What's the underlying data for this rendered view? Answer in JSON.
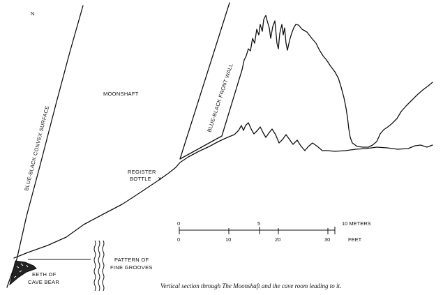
{
  "labels": {
    "north_marker": "N",
    "moonshaft": "MOONSHAFT",
    "convex_surface": "BLUE-BLACK CONVEX SURFACE",
    "front_wall": "BLUE-BLACK FRONT WALL",
    "register_line1": "REGISTER",
    "register_line2": "BOTTLE",
    "register_mark": "x",
    "grooves_line1": "PATTERN OF",
    "grooves_line2": "FINE GROOVES",
    "teeth_line1": "EETH OF",
    "teeth_line2": "CAVE BEAR"
  },
  "scale": {
    "meters_ticks": [
      "0",
      "5",
      "10 METERS"
    ],
    "feet_ticks": [
      "0",
      "10",
      "20",
      "30",
      "FEET"
    ]
  },
  "caption": "Vertical section through The Moonshaft and the cave room leading to it."
}
